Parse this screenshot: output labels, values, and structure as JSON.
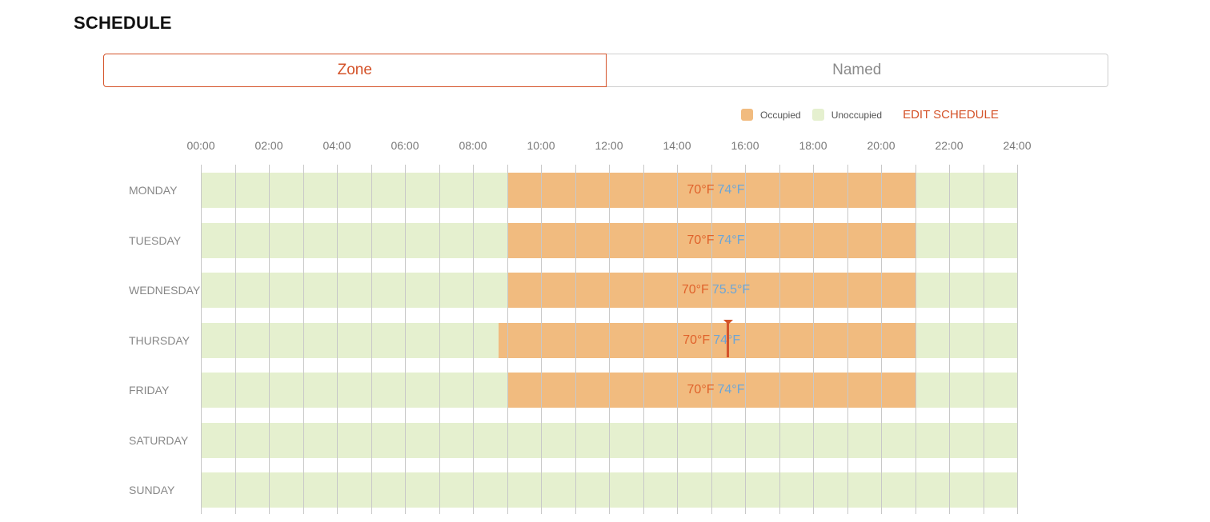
{
  "header": {
    "title": "SCHEDULE"
  },
  "tabs": [
    {
      "label": "Zone",
      "active": true
    },
    {
      "label": "Named",
      "active": false
    }
  ],
  "legend": {
    "occupied_label": "Occupied",
    "unoccupied_label": "Unoccupied",
    "edit_label": "EDIT SCHEDULE",
    "occupied_color": "#f1bb7f",
    "unoccupied_color": "#e5f0cf"
  },
  "time_axis": [
    "00:00",
    "02:00",
    "04:00",
    "06:00",
    "08:00",
    "10:00",
    "12:00",
    "14:00",
    "16:00",
    "18:00",
    "20:00",
    "22:00",
    "24:00"
  ],
  "colors": {
    "heat": "#e0622b",
    "cool": "#6ba6d8",
    "accent": "#d4532a"
  },
  "schedule": [
    {
      "day": "MONDAY",
      "occupied_start": "09:00",
      "occupied_end": "21:00",
      "heat": "70°F",
      "cool": "74°F"
    },
    {
      "day": "TUESDAY",
      "occupied_start": "09:00",
      "occupied_end": "21:00",
      "heat": "70°F",
      "cool": "74°F"
    },
    {
      "day": "WEDNESDAY",
      "occupied_start": "09:00",
      "occupied_end": "21:00",
      "heat": "70°F",
      "cool": "75.5°F"
    },
    {
      "day": "THURSDAY",
      "occupied_start": "08:45",
      "occupied_end": "21:00",
      "heat": "70°F",
      "cool": "74°F",
      "current_time": "15:30"
    },
    {
      "day": "FRIDAY",
      "occupied_start": "09:00",
      "occupied_end": "21:00",
      "heat": "70°F",
      "cool": "74°F"
    },
    {
      "day": "SATURDAY",
      "occupied_start": null,
      "occupied_end": null,
      "heat": null,
      "cool": null
    },
    {
      "day": "SUNDAY",
      "occupied_start": null,
      "occupied_end": null,
      "heat": null,
      "cool": null
    }
  ]
}
